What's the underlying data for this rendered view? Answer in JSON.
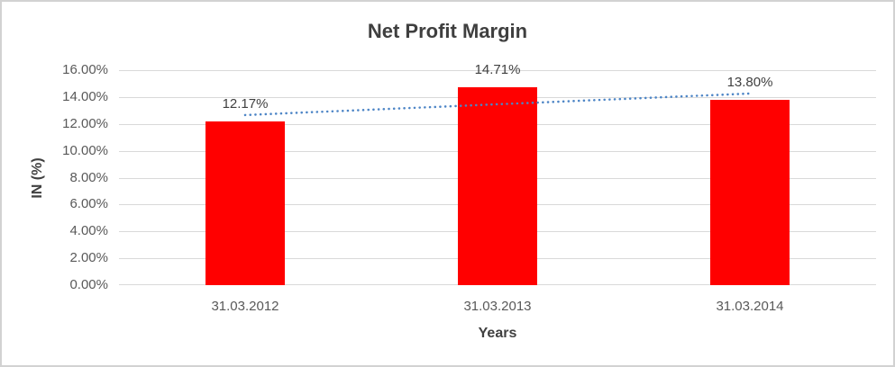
{
  "window": {
    "background_color": "#ffffff",
    "border_color": "#d2d2d2"
  },
  "chart_data": {
    "type": "bar",
    "title": "Net Profit Margin",
    "xlabel": "Years",
    "ylabel": "IN (%)",
    "categories": [
      "31.03.2012",
      "31.03.2013",
      "31.03.2014"
    ],
    "series": [
      {
        "name": "Net Profit Margin",
        "values": [
          12.17,
          14.71,
          13.8
        ],
        "data_labels": [
          "12.17%",
          "14.71%",
          "13.80%"
        ],
        "bar_color": "#ff0000"
      }
    ],
    "trendline": {
      "type": "linear",
      "style": "dotted",
      "color": "#4d85c6",
      "start_value": 12.66,
      "end_value": 14.26
    },
    "ylim": [
      0,
      16
    ],
    "ytick_step": 2,
    "ytick_labels": [
      "0.00%",
      "2.00%",
      "4.00%",
      "6.00%",
      "8.00%",
      "10.00%",
      "12.00%",
      "14.00%",
      "16.00%"
    ],
    "grid": true,
    "legend": "none",
    "gridline_color": "#d9d9d9",
    "text_colors": {
      "title": "#3f3f3f",
      "axis_titles": "#404040",
      "tick_labels": "#595959",
      "data_labels": "#404040"
    }
  }
}
